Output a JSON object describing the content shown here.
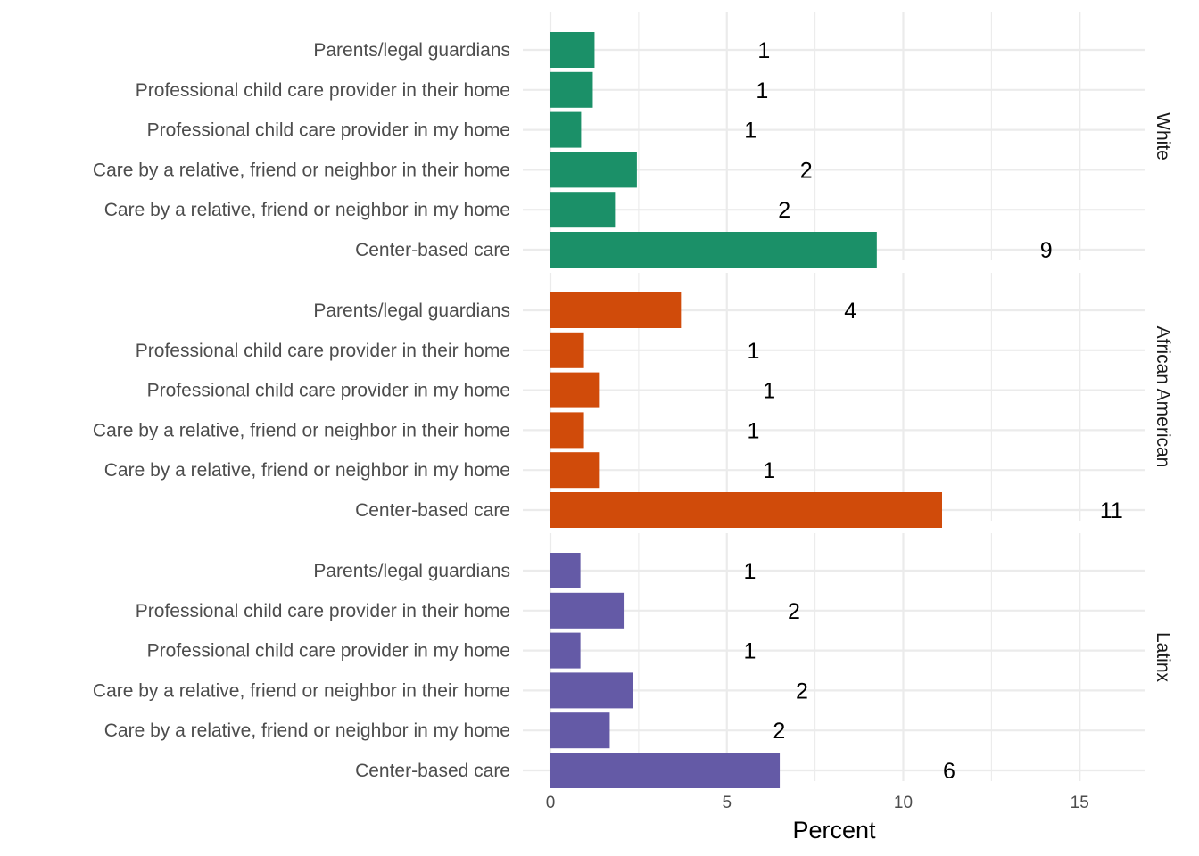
{
  "chart_data": {
    "type": "bar",
    "orientation": "horizontal",
    "xlabel": "Percent",
    "xlim": [
      0,
      17
    ],
    "xticks": [
      0,
      5,
      10,
      15
    ],
    "grid": true,
    "categories": [
      "Parents/legal guardians",
      "Professional child care provider in their home",
      "Professional child care provider in my home",
      "Care by a relative, friend or neighbor in their home",
      "Care by a relative, friend or neighbor in my home",
      "Center-based care"
    ],
    "panels": [
      {
        "name": "White",
        "color": "#1b9068",
        "values": [
          1.25,
          1.2,
          0.87,
          2.45,
          1.83,
          9.25
        ],
        "labels": [
          "1",
          "1",
          "1",
          "2",
          "2",
          "9"
        ]
      },
      {
        "name": "African American",
        "color": "#d04b0a",
        "values": [
          3.7,
          0.95,
          1.4,
          0.95,
          1.4,
          11.1
        ],
        "labels": [
          "4",
          "1",
          "1",
          "1",
          "1",
          "11"
        ]
      },
      {
        "name": "Latinx",
        "color": "#645aa6",
        "values": [
          0.85,
          2.1,
          0.85,
          2.33,
          1.68,
          6.5
        ],
        "labels": [
          "1",
          "2",
          "1",
          "2",
          "2",
          "6"
        ]
      }
    ]
  }
}
